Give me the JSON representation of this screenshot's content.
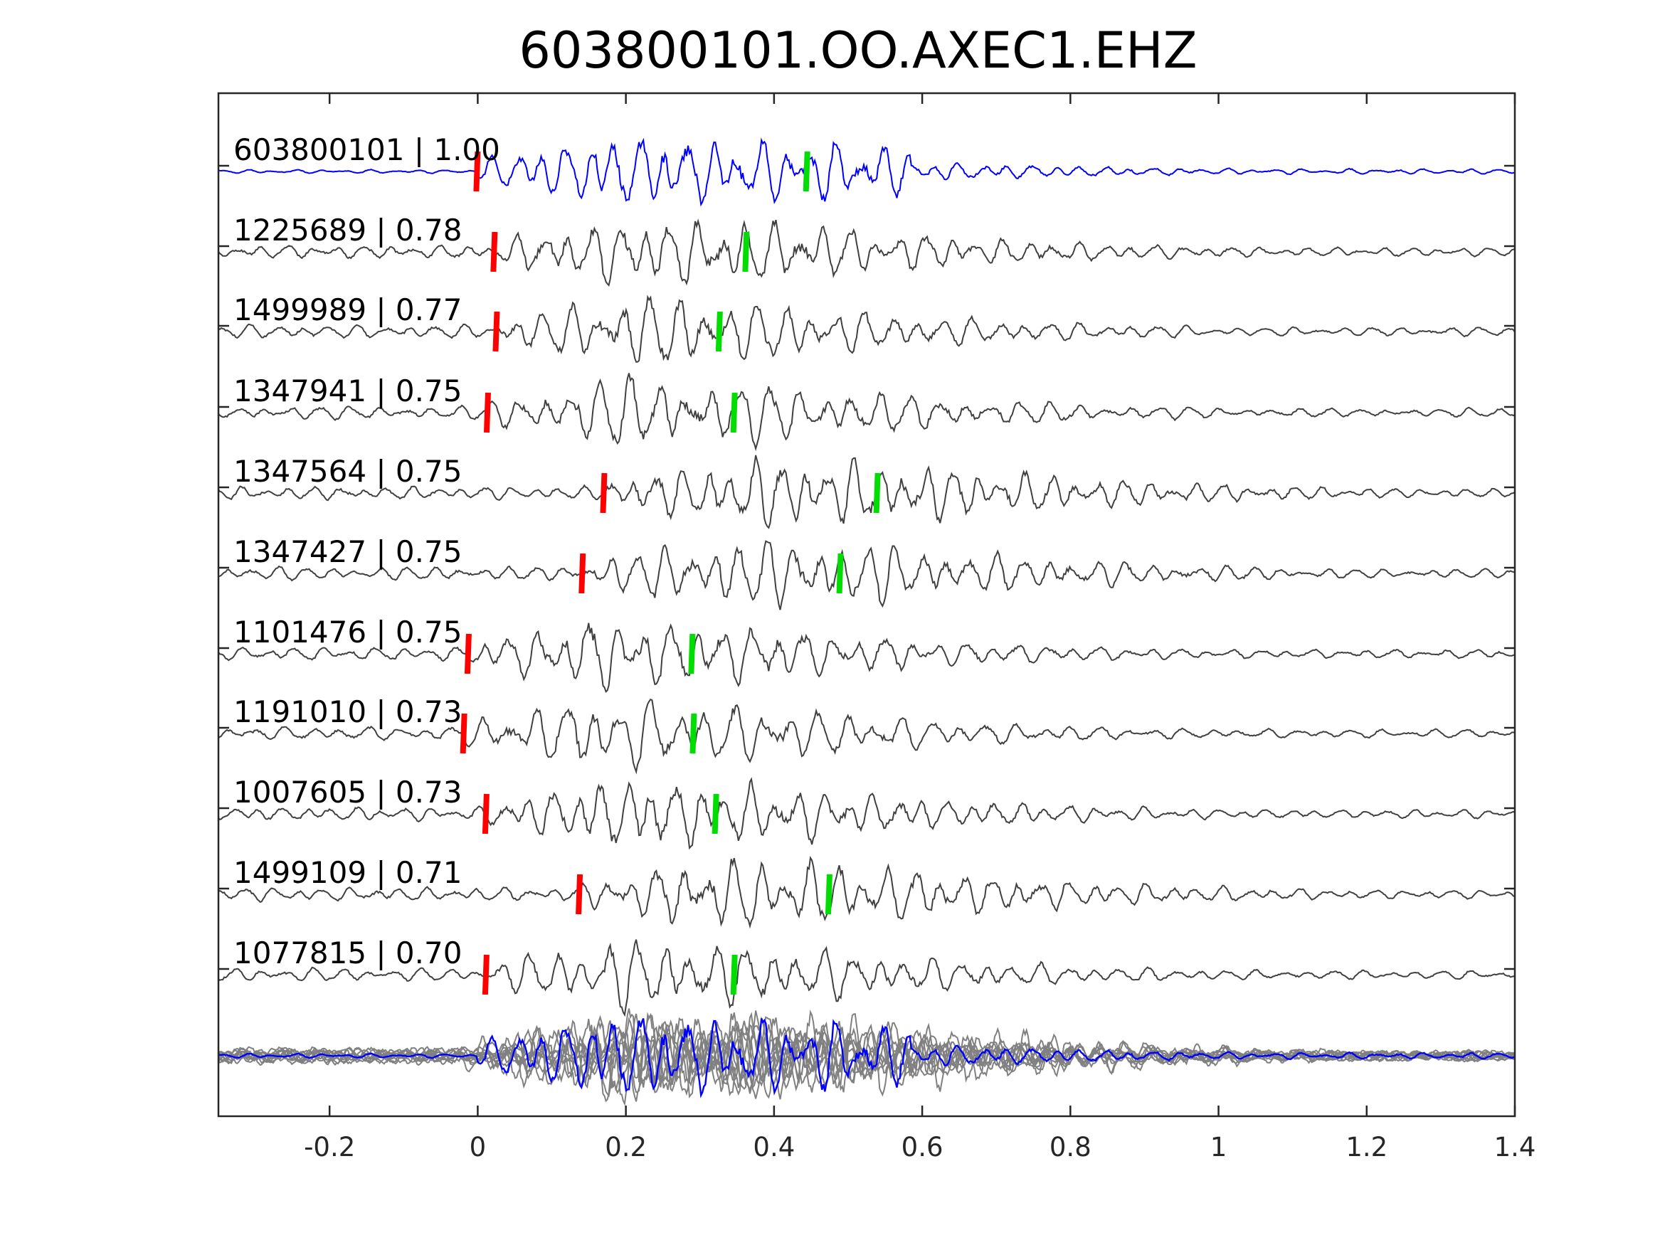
{
  "chart_data": {
    "type": "line",
    "title": "603800101.OO.AXEC1.EHZ",
    "xlabel": "",
    "ylabel": "",
    "xlim": [
      -0.35,
      1.4
    ],
    "xticks": [
      -0.2,
      0,
      0.2,
      0.4,
      0.6,
      0.8,
      1,
      1.2,
      1.4
    ],
    "xtick_labels": [
      "-0.2",
      "0",
      "0.2",
      "0.4",
      "0.6",
      "0.8",
      "1",
      "1.2",
      "1.4"
    ],
    "grid": false,
    "colors": {
      "reference": "#0000ff",
      "trace": "#404040",
      "stack": "#808080",
      "p_pick": "#ff0000",
      "s_pick": "#00dd00"
    },
    "traces": [
      {
        "label": "603800101 | 1.00",
        "id": "603800101",
        "cc": 1.0,
        "p_pick": 0.0,
        "s_pick": 0.445,
        "reference": true
      },
      {
        "label": "1225689 | 0.78",
        "id": "1225689",
        "cc": 0.78,
        "p_pick": 0.023,
        "s_pick": 0.363
      },
      {
        "label": "1499989 | 0.77",
        "id": "1499989",
        "cc": 0.77,
        "p_pick": 0.026,
        "s_pick": 0.327
      },
      {
        "label": "1347941 | 0.75",
        "id": "1347941",
        "cc": 0.75,
        "p_pick": 0.014,
        "s_pick": 0.347
      },
      {
        "label": "1347564 | 0.75",
        "id": "1347564",
        "cc": 0.75,
        "p_pick": 0.171,
        "s_pick": 0.54
      },
      {
        "label": "1347427 | 0.75",
        "id": "1347427",
        "cc": 0.75,
        "p_pick": 0.142,
        "s_pick": 0.49
      },
      {
        "label": "1101476 | 0.75",
        "id": "1101476",
        "cc": 0.75,
        "p_pick": -0.012,
        "s_pick": 0.29
      },
      {
        "label": "1191010 | 0.73",
        "id": "1191010",
        "cc": 0.73,
        "p_pick": -0.018,
        "s_pick": 0.292
      },
      {
        "label": "1007605 | 0.73",
        "id": "1007605",
        "cc": 0.73,
        "p_pick": 0.012,
        "s_pick": 0.322
      },
      {
        "label": "1499109 | 0.71",
        "id": "1499109",
        "cc": 0.71,
        "p_pick": 0.138,
        "s_pick": 0.475
      },
      {
        "label": "1077815 | 0.70",
        "id": "1077815",
        "cc": 0.7,
        "p_pick": 0.012,
        "s_pick": 0.347
      }
    ],
    "stack_overlay": true
  }
}
